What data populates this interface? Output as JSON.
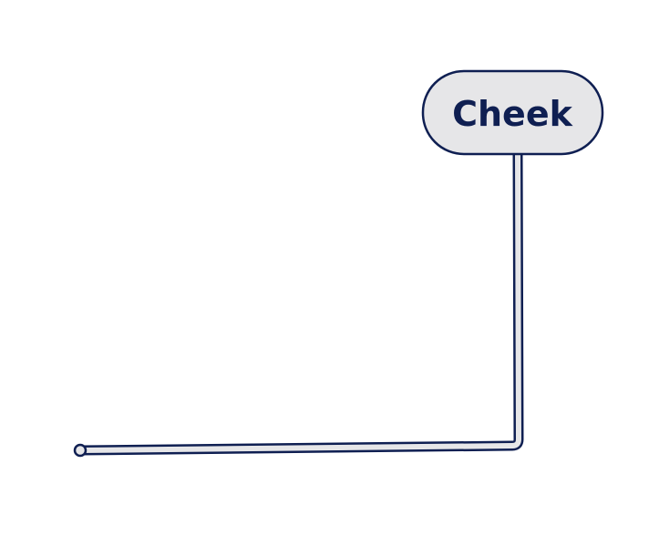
{
  "label": {
    "text": "Cheek"
  },
  "colors": {
    "stroke": "#0f1f52",
    "fill": "#e6e6e8",
    "text": "#0f1f52",
    "background": "#ffffff"
  }
}
